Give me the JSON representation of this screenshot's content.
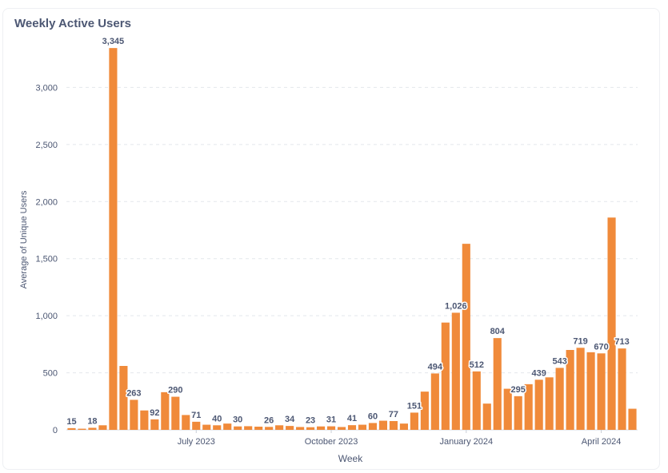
{
  "card": {
    "title": "Weekly Active Users"
  },
  "chart_data": {
    "type": "bar",
    "title": "Weekly Active Users",
    "xlabel": "Week",
    "ylabel": "Average of Unique Users",
    "ylim": [
      0,
      3500
    ],
    "yticks": [
      0,
      500,
      1000,
      1500,
      2000,
      2500,
      3000
    ],
    "ytick_labels": [
      "0",
      "500",
      "1,000",
      "1,500",
      "2,000",
      "2,500",
      "3,000"
    ],
    "grid": true,
    "color": "#f08a3a",
    "xticks": [
      {
        "label": "July 2023",
        "week": "2023-07-03"
      },
      {
        "label": "October 2023",
        "week": "2023-10-02"
      },
      {
        "label": "January 2024",
        "week": "2024-01-01"
      },
      {
        "label": "April 2024",
        "week": "2024-04-01"
      }
    ],
    "series": [
      {
        "values": [
          {
            "week": "2023-04-10",
            "value": 15,
            "label": "15"
          },
          {
            "week": "2023-04-17",
            "value": 10
          },
          {
            "week": "2023-04-24",
            "value": 18,
            "label": "18"
          },
          {
            "week": "2023-05-01",
            "value": 40
          },
          {
            "week": "2023-05-08",
            "value": 3345,
            "label": "3,345"
          },
          {
            "week": "2023-05-15",
            "value": 560
          },
          {
            "week": "2023-05-22",
            "value": 263,
            "label": "263"
          },
          {
            "week": "2023-05-29",
            "value": 170
          },
          {
            "week": "2023-06-05",
            "value": 92,
            "label": "92"
          },
          {
            "week": "2023-06-12",
            "value": 330
          },
          {
            "week": "2023-06-19",
            "value": 290,
            "label": "290"
          },
          {
            "week": "2023-06-26",
            "value": 130
          },
          {
            "week": "2023-07-03",
            "value": 71,
            "label": "71"
          },
          {
            "week": "2023-07-10",
            "value": 45
          },
          {
            "week": "2023-07-17",
            "value": 40,
            "label": "40"
          },
          {
            "week": "2023-07-24",
            "value": 55
          },
          {
            "week": "2023-07-31",
            "value": 30,
            "label": "30"
          },
          {
            "week": "2023-08-07",
            "value": 32
          },
          {
            "week": "2023-08-14",
            "value": 28
          },
          {
            "week": "2023-08-21",
            "value": 26,
            "label": "26"
          },
          {
            "week": "2023-08-28",
            "value": 40
          },
          {
            "week": "2023-09-04",
            "value": 34,
            "label": "34"
          },
          {
            "week": "2023-09-11",
            "value": 25
          },
          {
            "week": "2023-09-18",
            "value": 23,
            "label": "23"
          },
          {
            "week": "2023-09-25",
            "value": 30
          },
          {
            "week": "2023-10-02",
            "value": 31,
            "label": "31"
          },
          {
            "week": "2023-10-09",
            "value": 25
          },
          {
            "week": "2023-10-16",
            "value": 41,
            "label": "41"
          },
          {
            "week": "2023-10-23",
            "value": 45
          },
          {
            "week": "2023-10-30",
            "value": 60,
            "label": "60"
          },
          {
            "week": "2023-11-06",
            "value": 80
          },
          {
            "week": "2023-11-13",
            "value": 77,
            "label": "77"
          },
          {
            "week": "2023-11-20",
            "value": 55
          },
          {
            "week": "2023-11-27",
            "value": 151,
            "label": "151"
          },
          {
            "week": "2023-12-04",
            "value": 335
          },
          {
            "week": "2023-12-11",
            "value": 494,
            "label": "494"
          },
          {
            "week": "2023-12-18",
            "value": 940
          },
          {
            "week": "2023-12-25",
            "value": 1026,
            "label": "1,026"
          },
          {
            "week": "2024-01-01",
            "value": 1630
          },
          {
            "week": "2024-01-08",
            "value": 512,
            "label": "512"
          },
          {
            "week": "2024-01-15",
            "value": 230
          },
          {
            "week": "2024-01-22",
            "value": 804,
            "label": "804"
          },
          {
            "week": "2024-01-29",
            "value": 360
          },
          {
            "week": "2024-02-05",
            "value": 295,
            "label": "295"
          },
          {
            "week": "2024-02-12",
            "value": 400
          },
          {
            "week": "2024-02-19",
            "value": 439,
            "label": "439"
          },
          {
            "week": "2024-02-26",
            "value": 460
          },
          {
            "week": "2024-03-04",
            "value": 543,
            "label": "543"
          },
          {
            "week": "2024-03-11",
            "value": 700
          },
          {
            "week": "2024-03-18",
            "value": 719,
            "label": "719"
          },
          {
            "week": "2024-03-25",
            "value": 680
          },
          {
            "week": "2024-04-01",
            "value": 670,
            "label": "670"
          },
          {
            "week": "2024-04-08",
            "value": 1860
          },
          {
            "week": "2024-04-15",
            "value": 713,
            "label": "713"
          },
          {
            "week": "2024-04-22",
            "value": 185
          }
        ]
      }
    ]
  }
}
